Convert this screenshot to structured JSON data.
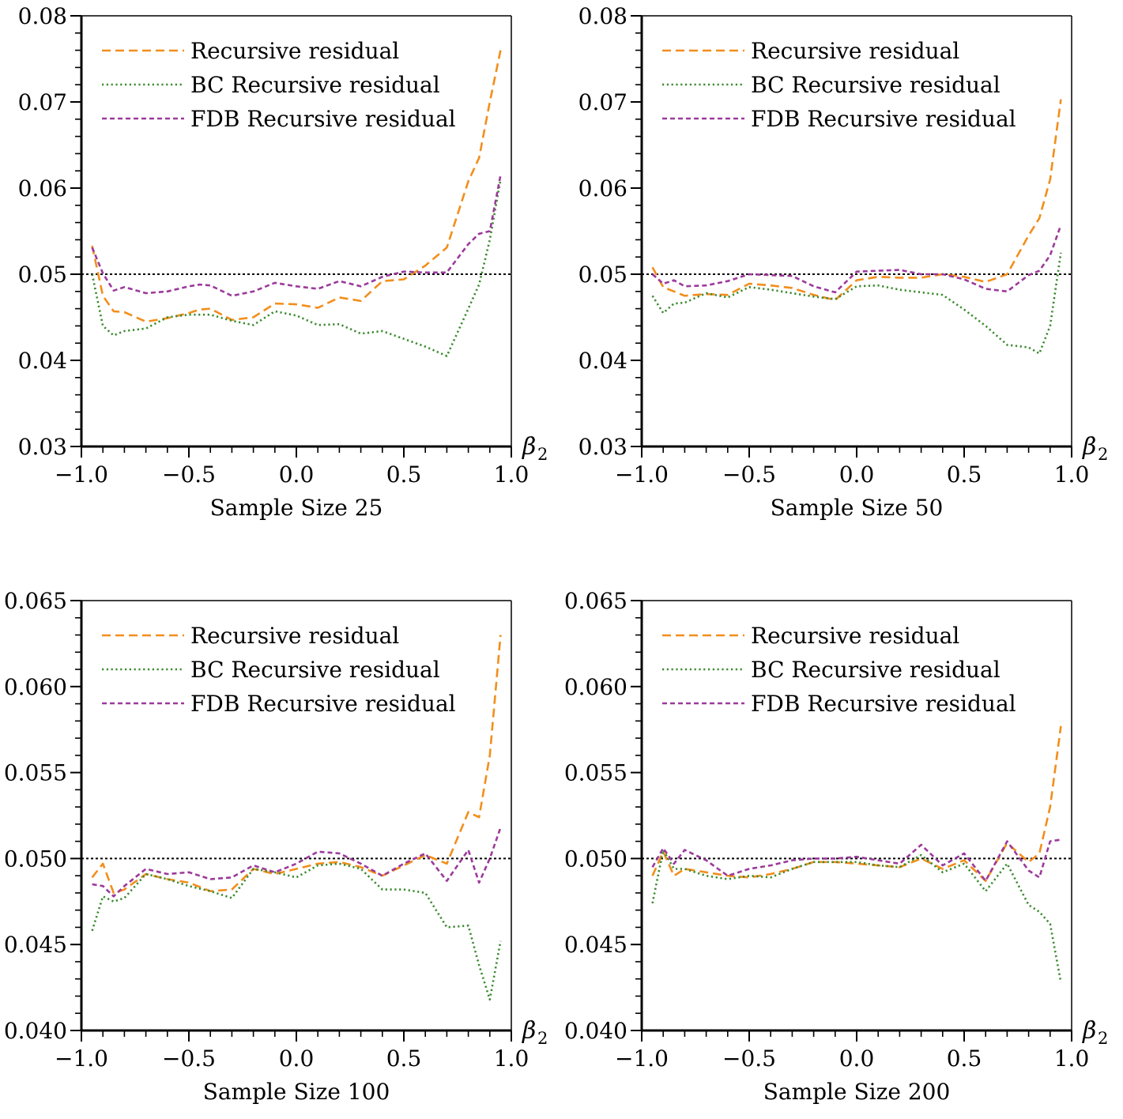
{
  "chart_data": [
    {
      "type": "line",
      "caption": "Sample Size 25",
      "xaxis_symbol": "β",
      "xaxis_subscript": "2",
      "xlim": [
        -1.0,
        1.0
      ],
      "ylim": [
        0.03,
        0.08
      ],
      "xticks": [
        -1.0,
        -0.5,
        0.0,
        0.5,
        1.0
      ],
      "xtick_labels": [
        "−1.0",
        "−0.5",
        "0.0",
        "0.5",
        "1.0"
      ],
      "yticks": [
        0.03,
        0.04,
        0.05,
        0.06,
        0.07,
        0.08
      ],
      "ytick_labels": [
        "0.03",
        "0.04",
        "0.05",
        "0.06",
        "0.07",
        "0.08"
      ],
      "reference_line": 0.05,
      "legend_position": "upper-left",
      "grid": false,
      "x": [
        -0.95,
        -0.9,
        -0.85,
        -0.8,
        -0.7,
        -0.6,
        -0.5,
        -0.45,
        -0.4,
        -0.3,
        -0.2,
        -0.1,
        0.0,
        0.1,
        0.2,
        0.3,
        0.4,
        0.5,
        0.6,
        0.7,
        0.8,
        0.85,
        0.9,
        0.95
      ],
      "series": [
        {
          "name": "Recursive residual",
          "color": "#f28e1c",
          "dash": "dashed",
          "values": [
            0.0533,
            0.0475,
            0.0457,
            0.0456,
            0.0445,
            0.0449,
            0.0455,
            0.0459,
            0.046,
            0.0447,
            0.045,
            0.0466,
            0.0465,
            0.0461,
            0.0473,
            0.0469,
            0.0492,
            0.0494,
            0.051,
            0.0531,
            0.0608,
            0.0635,
            0.07,
            0.076
          ]
        },
        {
          "name": "BC Recursive residual",
          "color": "#3a8a2e",
          "dash": "dotted",
          "values": [
            0.05,
            0.044,
            0.0429,
            0.0434,
            0.0437,
            0.045,
            0.0453,
            0.0453,
            0.0453,
            0.0446,
            0.0441,
            0.0457,
            0.0452,
            0.0441,
            0.0442,
            0.0431,
            0.0434,
            0.0425,
            0.0416,
            0.0405,
            0.046,
            0.0488,
            0.054,
            0.061
          ]
        },
        {
          "name": "FDB Recursive residual",
          "color": "#9b3a9b",
          "dash": "shortdash",
          "values": [
            0.0531,
            0.0501,
            0.0481,
            0.0485,
            0.0478,
            0.048,
            0.0486,
            0.0488,
            0.0487,
            0.0475,
            0.048,
            0.049,
            0.0486,
            0.0483,
            0.0492,
            0.0486,
            0.0497,
            0.0503,
            0.0502,
            0.0502,
            0.0535,
            0.0547,
            0.055,
            0.0615
          ]
        }
      ]
    },
    {
      "type": "line",
      "caption": "Sample Size 50",
      "xaxis_symbol": "β",
      "xaxis_subscript": "2",
      "xlim": [
        -1.0,
        1.0
      ],
      "ylim": [
        0.03,
        0.08
      ],
      "xticks": [
        -1.0,
        -0.5,
        0.0,
        0.5,
        1.0
      ],
      "xtick_labels": [
        "−1.0",
        "−0.5",
        "0.0",
        "0.5",
        "1.0"
      ],
      "yticks": [
        0.03,
        0.04,
        0.05,
        0.06,
        0.07,
        0.08
      ],
      "ytick_labels": [
        "0.03",
        "0.04",
        "0.05",
        "0.06",
        "0.07",
        "0.08"
      ],
      "reference_line": 0.05,
      "legend_position": "upper-left",
      "grid": false,
      "x": [
        -0.95,
        -0.9,
        -0.85,
        -0.8,
        -0.7,
        -0.6,
        -0.5,
        -0.4,
        -0.3,
        -0.2,
        -0.1,
        0.0,
        0.1,
        0.2,
        0.3,
        0.4,
        0.5,
        0.6,
        0.7,
        0.8,
        0.85,
        0.9,
        0.95
      ],
      "series": [
        {
          "name": "Recursive residual",
          "color": "#f28e1c",
          "dash": "dashed",
          "values": [
            0.0508,
            0.0485,
            0.048,
            0.0475,
            0.0477,
            0.0476,
            0.0489,
            0.0487,
            0.0484,
            0.0476,
            0.047,
            0.0493,
            0.0497,
            0.0496,
            0.0496,
            0.05,
            0.0497,
            0.0491,
            0.05,
            0.0545,
            0.0565,
            0.061,
            0.0703
          ]
        },
        {
          "name": "BC Recursive residual",
          "color": "#3a8a2e",
          "dash": "dotted",
          "values": [
            0.0475,
            0.0455,
            0.0466,
            0.0467,
            0.0478,
            0.0473,
            0.0485,
            0.0482,
            0.0478,
            0.0474,
            0.0471,
            0.0486,
            0.0487,
            0.0482,
            0.0479,
            0.0476,
            0.0459,
            0.044,
            0.0418,
            0.0415,
            0.0408,
            0.044,
            0.0525
          ]
        },
        {
          "name": "FDB Recursive residual",
          "color": "#9b3a9b",
          "dash": "shortdash",
          "values": [
            0.05,
            0.0489,
            0.0493,
            0.0486,
            0.0487,
            0.0492,
            0.05,
            0.0499,
            0.0498,
            0.0486,
            0.0479,
            0.0503,
            0.0504,
            0.0505,
            0.05,
            0.05,
            0.0494,
            0.0483,
            0.048,
            0.0499,
            0.0504,
            0.0522,
            0.0557
          ]
        }
      ]
    },
    {
      "type": "line",
      "caption": "Sample Size 100",
      "xaxis_symbol": "β",
      "xaxis_subscript": "2",
      "xlim": [
        -1.0,
        1.0
      ],
      "ylim": [
        0.04,
        0.065
      ],
      "xticks": [
        -1.0,
        -0.5,
        0.0,
        0.5,
        1.0
      ],
      "xtick_labels": [
        "−1.0",
        "−0.5",
        "0.0",
        "0.5",
        "1.0"
      ],
      "yticks": [
        0.04,
        0.045,
        0.05,
        0.055,
        0.06,
        0.065
      ],
      "ytick_labels": [
        "0.040",
        "0.045",
        "0.050",
        "0.055",
        "0.060",
        "0.065"
      ],
      "reference_line": 0.05,
      "legend_position": "upper-left",
      "grid": false,
      "x": [
        -0.95,
        -0.9,
        -0.85,
        -0.8,
        -0.7,
        -0.6,
        -0.5,
        -0.4,
        -0.3,
        -0.2,
        -0.1,
        0.0,
        0.1,
        0.2,
        0.3,
        0.4,
        0.5,
        0.6,
        0.7,
        0.8,
        0.85,
        0.9,
        0.95
      ],
      "series": [
        {
          "name": "Recursive residual",
          "color": "#f28e1c",
          "dash": "dashed",
          "values": [
            0.0489,
            0.0497,
            0.048,
            0.0482,
            0.0491,
            0.0488,
            0.0486,
            0.0481,
            0.0482,
            0.0494,
            0.0491,
            0.0494,
            0.0497,
            0.0498,
            0.0495,
            0.049,
            0.0496,
            0.0502,
            0.0497,
            0.0527,
            0.0524,
            0.056,
            0.063
          ]
        },
        {
          "name": "BC Recursive residual",
          "color": "#3a8a2e",
          "dash": "dotted",
          "values": [
            0.0458,
            0.0478,
            0.0475,
            0.0477,
            0.0491,
            0.0488,
            0.0484,
            0.0481,
            0.0477,
            0.0494,
            0.0492,
            0.0489,
            0.0496,
            0.0497,
            0.0494,
            0.0482,
            0.0482,
            0.048,
            0.046,
            0.0461,
            0.0438,
            0.0418,
            0.0452
          ]
        },
        {
          "name": "FDB Recursive residual",
          "color": "#9b3a9b",
          "dash": "shortdash",
          "values": [
            0.0485,
            0.0484,
            0.0478,
            0.0484,
            0.0494,
            0.0491,
            0.0492,
            0.0488,
            0.0489,
            0.0496,
            0.0492,
            0.0497,
            0.0504,
            0.0503,
            0.0497,
            0.049,
            0.0497,
            0.0503,
            0.0487,
            0.0505,
            0.0486,
            0.05,
            0.0518
          ]
        }
      ]
    },
    {
      "type": "line",
      "caption": "Sample Size 200",
      "xaxis_symbol": "β",
      "xaxis_subscript": "2",
      "xlim": [
        -1.0,
        1.0
      ],
      "ylim": [
        0.04,
        0.065
      ],
      "xticks": [
        -1.0,
        -0.5,
        0.0,
        0.5,
        1.0
      ],
      "xtick_labels": [
        "−1.0",
        "−0.5",
        "0.0",
        "0.5",
        "1.0"
      ],
      "yticks": [
        0.04,
        0.045,
        0.05,
        0.055,
        0.06,
        0.065
      ],
      "ytick_labels": [
        "0.040",
        "0.045",
        "0.050",
        "0.055",
        "0.060",
        "0.065"
      ],
      "reference_line": 0.05,
      "legend_position": "upper-left",
      "grid": false,
      "x": [
        -0.95,
        -0.9,
        -0.85,
        -0.8,
        -0.7,
        -0.6,
        -0.5,
        -0.4,
        -0.3,
        -0.2,
        -0.1,
        0.0,
        0.1,
        0.2,
        0.3,
        0.4,
        0.5,
        0.6,
        0.7,
        0.8,
        0.85,
        0.9,
        0.95
      ],
      "series": [
        {
          "name": "Recursive residual",
          "color": "#f28e1c",
          "dash": "dashed",
          "values": [
            0.049,
            0.0504,
            0.049,
            0.0494,
            0.0492,
            0.049,
            0.0489,
            0.0491,
            0.0494,
            0.0498,
            0.0498,
            0.0497,
            0.0496,
            0.0495,
            0.05,
            0.0494,
            0.0499,
            0.0487,
            0.0509,
            0.0498,
            0.0503,
            0.053,
            0.0577
          ]
        },
        {
          "name": "BC Recursive residual",
          "color": "#3a8a2e",
          "dash": "dotted",
          "values": [
            0.0474,
            0.0505,
            0.0494,
            0.0494,
            0.049,
            0.0488,
            0.049,
            0.0489,
            0.0494,
            0.0498,
            0.0498,
            0.0498,
            0.0496,
            0.0495,
            0.0502,
            0.0492,
            0.0497,
            0.0481,
            0.0497,
            0.0473,
            0.0469,
            0.0462,
            0.0428
          ]
        },
        {
          "name": "FDB Recursive residual",
          "color": "#9b3a9b",
          "dash": "shortdash",
          "values": [
            0.0495,
            0.0506,
            0.0497,
            0.0505,
            0.0499,
            0.049,
            0.0494,
            0.0496,
            0.0499,
            0.05,
            0.05,
            0.0501,
            0.0499,
            0.0497,
            0.0508,
            0.0496,
            0.0503,
            0.0487,
            0.051,
            0.0493,
            0.0489,
            0.051,
            0.0511
          ]
        }
      ]
    }
  ]
}
